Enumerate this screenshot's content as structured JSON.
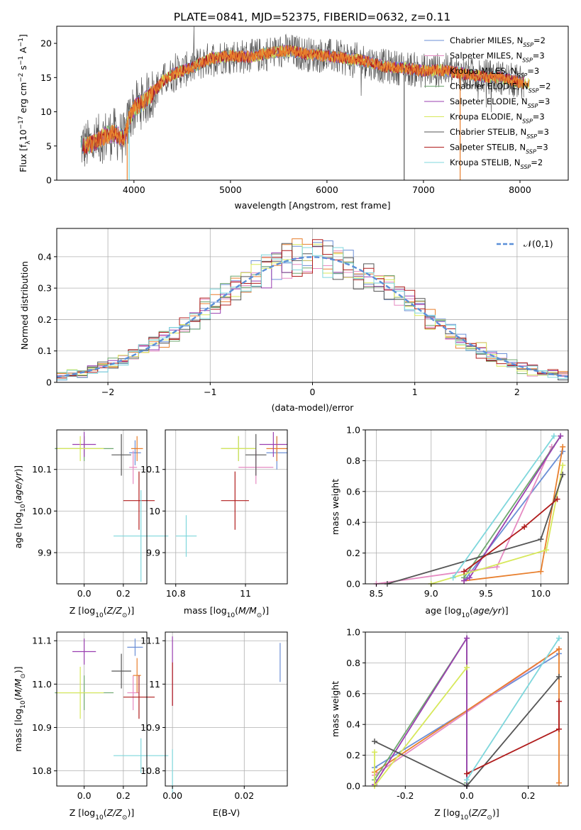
{
  "figure": {
    "title": "PLATE=0841, MJD=52375, FIBERID=0632, z=0.11"
  },
  "models": [
    {
      "name": "Chabrier MILES, N_SSP=2",
      "label": "Chabrier MILES, N",
      "sub": "SSP",
      "tail": "=2",
      "color": "#6b8fd6"
    },
    {
      "name": "Salpeter MILES, N_SSP=3",
      "label": "Salpeter MILES, N",
      "sub": "SSP",
      "tail": "=3",
      "color": "#e58ac2"
    },
    {
      "name": "Kroupa MILES, N_SSP=3",
      "label": "Kroupa MILES, N",
      "sub": "SSP",
      "tail": "=3",
      "color": "#e87f2d"
    },
    {
      "name": "Chabrier ELODIE, N_SSP=2",
      "label": "Chabrier ELODIE, N",
      "sub": "SSP",
      "tail": "=2",
      "color": "#6fa76f"
    },
    {
      "name": "Salpeter ELODIE, N_SSP=3",
      "label": "Salpeter ELODIE, N",
      "sub": "SSP",
      "tail": "=3",
      "color": "#9a3fb0"
    },
    {
      "name": "Kroupa ELODIE, N_SSP=3",
      "label": "Kroupa ELODIE, N",
      "sub": "SSP",
      "tail": "=3",
      "color": "#d7e85a"
    },
    {
      "name": "Chabrier STELIB, N_SSP=3",
      "label": "Chabrier STELIB, N",
      "sub": "SSP",
      "tail": "=3",
      "color": "#555555"
    },
    {
      "name": "Salpeter STELIB, N_SSP=3",
      "label": "Salpeter STELIB, N",
      "sub": "SSP",
      "tail": "=3",
      "color": "#b01c1c"
    },
    {
      "name": "Kroupa STELIB, N_SSP=2",
      "label": "Kroupa STELIB, N",
      "sub": "SSP",
      "tail": "=2",
      "color": "#7fd7dc"
    }
  ],
  "chart_data": [
    {
      "id": "spectrum",
      "type": "line",
      "xlabel": "wavelength [Angstrom, rest frame]",
      "ylabel": "Flux [f_λ 10^-17 erg cm^-2 s^-1 A^-1]",
      "ylabel_parts": {
        "pre": "Flux [f",
        "sub": "λ",
        "mid": "10",
        "sup1": "−17",
        "unit1": " erg cm",
        "sup2": "−2",
        "unit2": " s",
        "sup3": "−1",
        "unit3": " A",
        "sup4": "−1",
        "post": "]"
      },
      "xlim": [
        3200,
        8500
      ],
      "ylim": [
        0,
        22.5
      ],
      "xticks": [
        4000,
        5000,
        6000,
        7000,
        8000
      ],
      "yticks": [
        0,
        5,
        10,
        15,
        20
      ],
      "continuum": {
        "x": [
          3450,
          3500,
          3600,
          3700,
          3800,
          3900,
          3950,
          4000,
          4100,
          4200,
          4300,
          4400,
          4600,
          4800,
          5000,
          5200,
          5400,
          5600,
          5800,
          6000,
          6200,
          6400,
          6600,
          6800,
          7000,
          7200,
          7400,
          7600,
          7800,
          8000,
          8100
        ],
        "y": [
          5.2,
          5.0,
          5.5,
          6.5,
          6.8,
          6.0,
          9.0,
          10.5,
          11.5,
          12.8,
          14.5,
          15.5,
          16.5,
          17.8,
          18.2,
          18.0,
          18.6,
          18.9,
          18.4,
          18.2,
          17.8,
          17.4,
          16.6,
          16.4,
          16.0,
          16.1,
          15.6,
          15.2,
          15.0,
          14.3,
          14.0
        ]
      },
      "grid": false
    },
    {
      "id": "residuals",
      "type": "histogram",
      "xlabel": "(data-model)/error",
      "ylabel": "Normed distribution",
      "xlim": [
        -2.5,
        2.5
      ],
      "ylim": [
        0,
        0.49
      ],
      "xticks": [
        -2,
        -1,
        0,
        1,
        2
      ],
      "yticks": [
        0.0,
        0.1,
        0.2,
        0.3,
        0.4
      ],
      "legend": {
        "label": "𝒩(0,1)",
        "position": "top-right",
        "style": "dashed",
        "color": "#5b8fd8"
      },
      "bin_width": 0.1,
      "grid": true
    },
    {
      "id": "age-vs-Z",
      "type": "scatter",
      "xlabel": "Z [log10(Z/Z⊙)]",
      "ylabel": "age  [log10(age/yr)]",
      "xlim": [
        -0.14,
        0.32
      ],
      "ylim": [
        9.825,
        10.195
      ],
      "xticks": [
        0.0,
        0.2
      ],
      "yticks": [
        9.9,
        10.0,
        10.1
      ],
      "points": [
        {
          "x": 0.26,
          "y": 10.14,
          "xerr": 0.03,
          "yerr": 0.03
        },
        {
          "x": 0.25,
          "y": 10.105,
          "xerr": 0.02,
          "yerr": 0.04
        },
        {
          "x": 0.27,
          "y": 10.15,
          "xerr": 0.03,
          "yerr": 0.03
        },
        {
          "x": 0.0,
          "y": 10.15,
          "xerr": 0.15,
          "yerr": 0.03
        },
        {
          "x": 0.0,
          "y": 10.16,
          "xerr": 0.06,
          "yerr": 0.03
        },
        {
          "x": -0.02,
          "y": 10.15,
          "xerr": 0.12,
          "yerr": 0.03
        },
        {
          "x": 0.19,
          "y": 10.135,
          "xerr": 0.05,
          "yerr": 0.05
        },
        {
          "x": 0.28,
          "y": 10.025,
          "xerr": 0.08,
          "yerr": 0.07
        },
        {
          "x": 0.29,
          "y": 9.94,
          "xerr": 0.14,
          "yerr": 0.11
        }
      ],
      "grid": true
    },
    {
      "id": "age-vs-mass",
      "type": "scatter",
      "xlabel": "mass [log10(M/M⊙)]",
      "ylabel": "",
      "xlim": [
        10.77,
        11.12
      ],
      "ylim": [
        9.825,
        10.195
      ],
      "xticks": [
        10.8,
        11.0
      ],
      "yticks": [
        9.9,
        10.0,
        10.1
      ],
      "points": [
        {
          "x": 11.09,
          "y": 10.14,
          "xerr": 0.03,
          "yerr": 0.04
        },
        {
          "x": 11.03,
          "y": 10.105,
          "xerr": 0.05,
          "yerr": 0.04
        },
        {
          "x": 11.09,
          "y": 10.15,
          "xerr": 0.03,
          "yerr": 0.03
        },
        {
          "x": 10.98,
          "y": 10.15,
          "xerr": 0.05,
          "yerr": 0.03
        },
        {
          "x": 11.08,
          "y": 10.16,
          "xerr": 0.04,
          "yerr": 0.03
        },
        {
          "x": 10.98,
          "y": 10.15,
          "xerr": 0.05,
          "yerr": 0.03
        },
        {
          "x": 11.03,
          "y": 10.135,
          "xerr": 0.03,
          "yerr": 0.05
        },
        {
          "x": 10.97,
          "y": 10.025,
          "xerr": 0.04,
          "yerr": 0.07
        },
        {
          "x": 10.83,
          "y": 9.94,
          "xerr": 0.03,
          "yerr": 0.05
        }
      ],
      "grid": true
    },
    {
      "id": "mass-weight-vs-age",
      "type": "line",
      "xlabel": "age  [log10(age/yr)]",
      "ylabel": "mass weight",
      "xlim": [
        8.4,
        10.25
      ],
      "ylim": [
        0.0,
        1.0
      ],
      "xticks": [
        8.5,
        9.0,
        9.5,
        10.0
      ],
      "yticks": [
        0.0,
        0.2,
        0.4,
        0.6,
        0.8,
        1.0
      ],
      "series": [
        {
          "x": [
            9.3,
            10.2
          ],
          "y": [
            0.02,
            0.86
          ]
        },
        {
          "x": [
            8.5,
            9.6,
            10.1
          ],
          "y": [
            0.0,
            0.11,
            0.89
          ]
        },
        {
          "x": [
            9.3,
            10.0,
            10.2
          ],
          "y": [
            0.02,
            0.08,
            0.89
          ]
        },
        {
          "x": [
            9.3,
            10.18
          ],
          "y": [
            0.04,
            0.96
          ]
        },
        {
          "x": [
            9.3,
            9.35,
            10.18
          ],
          "y": [
            0.02,
            0.04,
            0.96
          ]
        },
        {
          "x": [
            9.0,
            10.05,
            10.2
          ],
          "y": [
            0.0,
            0.22,
            0.77
          ]
        },
        {
          "x": [
            8.6,
            10.0,
            10.2
          ],
          "y": [
            0.0,
            0.29,
            0.71
          ]
        },
        {
          "x": [
            9.3,
            9.85,
            10.15
          ],
          "y": [
            0.08,
            0.37,
            0.55
          ]
        },
        {
          "x": [
            9.2,
            10.12
          ],
          "y": [
            0.04,
            0.96
          ]
        }
      ],
      "grid": true
    },
    {
      "id": "mass-vs-Z",
      "type": "scatter",
      "xlabel": "Z [log10(Z/Z⊙)]",
      "ylabel": "mass [log10(M/M⊙)]",
      "xlim": [
        -0.14,
        0.32
      ],
      "ylim": [
        10.765,
        11.12
      ],
      "xticks": [
        0.0,
        0.2
      ],
      "yticks": [
        10.8,
        10.9,
        11.0,
        11.1
      ],
      "points": [
        {
          "x": 0.26,
          "y": 11.085,
          "xerr": 0.04,
          "yerr": 0.02
        },
        {
          "x": 0.25,
          "y": 10.98,
          "xerr": 0.03,
          "yerr": 0.04
        },
        {
          "x": 0.27,
          "y": 11.02,
          "xerr": 0.02,
          "yerr": 0.04
        },
        {
          "x": 0.0,
          "y": 10.98,
          "xerr": 0.15,
          "yerr": 0.04
        },
        {
          "x": 0.0,
          "y": 11.075,
          "xerr": 0.06,
          "yerr": 0.03
        },
        {
          "x": -0.02,
          "y": 10.98,
          "xerr": 0.12,
          "yerr": 0.06
        },
        {
          "x": 0.19,
          "y": 11.03,
          "xerr": 0.05,
          "yerr": 0.04
        },
        {
          "x": 0.28,
          "y": 10.97,
          "xerr": 0.08,
          "yerr": 0.05
        },
        {
          "x": 0.29,
          "y": 10.835,
          "xerr": 0.14,
          "yerr": 0.04
        }
      ],
      "grid": true
    },
    {
      "id": "mass-vs-EBV",
      "type": "scatter",
      "xlabel": "E(B-V)",
      "ylabel": "",
      "xlim": [
        -0.002,
        0.032
      ],
      "ylim": [
        10.765,
        11.12
      ],
      "xticks": [
        0.0,
        0.02
      ],
      "yticks": [
        10.8,
        10.9,
        11.0,
        11.1
      ],
      "points": [
        {
          "x": 0.03,
          "y": 11.05,
          "xerr": 0.0,
          "yerr": 0.045
        },
        {
          "x": 0.0,
          "y": 11.03,
          "xerr": 0.0,
          "yerr": 0.08
        },
        {
          "x": 0.0,
          "y": 11.0,
          "xerr": 0.0,
          "yerr": 0.05
        },
        {
          "x": 0.0,
          "y": 10.8,
          "xerr": 0.0,
          "yerr": 0.05
        }
      ],
      "grid": true
    },
    {
      "id": "mass-weight-vs-Z",
      "type": "line",
      "xlabel": "Z [log10(Z/Z⊙)]",
      "ylabel": "mass weight",
      "xlim": [
        -0.33,
        0.33
      ],
      "ylim": [
        0.0,
        1.0
      ],
      "xticks": [
        -0.2,
        0.0,
        0.2
      ],
      "yticks": [
        0.0,
        0.2,
        0.4,
        0.6,
        0.8,
        1.0
      ],
      "series": [
        {
          "x": [
            -0.3,
            0.3
          ],
          "y": [
            0.12,
            0.86
          ]
        },
        {
          "x": [
            -0.3,
            0.3
          ],
          "y": [
            0.07,
            0.89
          ]
        },
        {
          "x": [
            -0.3,
            0.3,
            0.3
          ],
          "y": [
            0.09,
            0.89,
            0.02
          ]
        },
        {
          "x": [
            -0.3,
            0.0,
            0.0
          ],
          "y": [
            0.04,
            0.96,
            0.02
          ]
        },
        {
          "x": [
            -0.3,
            0.0,
            0.0
          ],
          "y": [
            0.01,
            0.96,
            0.0
          ]
        },
        {
          "x": [
            -0.3,
            -0.3,
            0.0
          ],
          "y": [
            0.22,
            0.0,
            0.77
          ]
        },
        {
          "x": [
            -0.3,
            0.0,
            0.3
          ],
          "y": [
            0.29,
            0.0,
            0.71
          ]
        },
        {
          "x": [
            0.0,
            0.3,
            0.3
          ],
          "y": [
            0.08,
            0.37,
            0.55
          ]
        },
        {
          "x": [
            0.0,
            0.3
          ],
          "y": [
            0.04,
            0.96
          ]
        }
      ],
      "grid": true
    }
  ]
}
